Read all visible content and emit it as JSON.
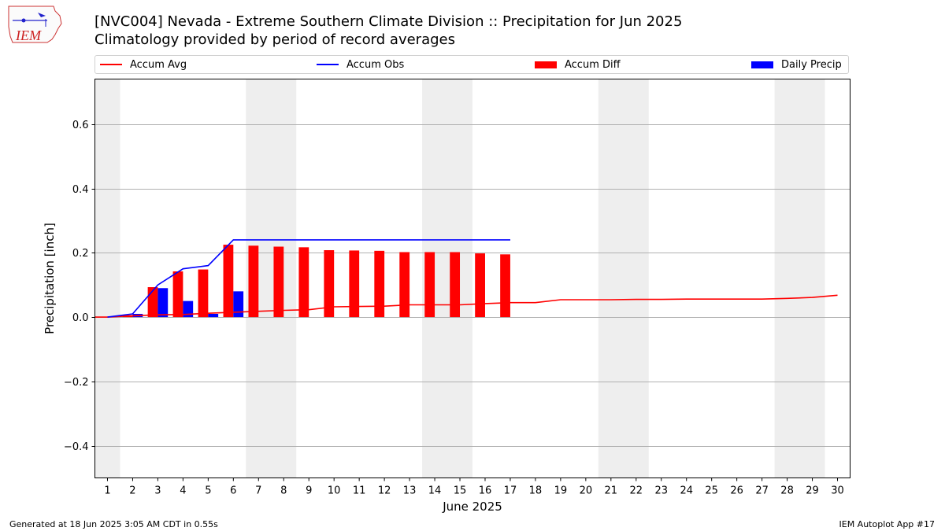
{
  "header": {
    "title": "[NVC004] Nevada - Extreme Southern Climate Division :: Precipitation for Jun 2025",
    "subtitle": "Climatology provided by period of record averages"
  },
  "logo": {
    "text": "IEM",
    "icon": "iem-iowa-logo-icon"
  },
  "legend": {
    "items": [
      {
        "label": "Accum Avg",
        "kind": "line",
        "color": "#ff0000"
      },
      {
        "label": "Accum Obs",
        "kind": "line",
        "color": "#0000ff"
      },
      {
        "label": "Accum Diff",
        "kind": "bar",
        "color": "#ff0000"
      },
      {
        "label": "Daily Precip",
        "kind": "bar",
        "color": "#0000ff"
      }
    ]
  },
  "footer": {
    "generated": "Generated at 18 Jun 2025 3:05 AM CDT in 0.55s",
    "app": "IEM Autoplot App #17"
  },
  "chart_data": {
    "type": "bar",
    "xlabel": "June 2025",
    "ylabel": "Precipitation [inch]",
    "xlim": [
      0.5,
      30.5
    ],
    "ylim": [
      -0.5,
      0.74
    ],
    "yticks": [
      -0.4,
      -0.2,
      0.0,
      0.2,
      0.4,
      0.6
    ],
    "ytick_labels": [
      "−0.4",
      "−0.2",
      "0.0",
      "0.2",
      "0.4",
      "0.6"
    ],
    "categories": [
      "1",
      "2",
      "3",
      "4",
      "5",
      "6",
      "7",
      "8",
      "9",
      "10",
      "11",
      "12",
      "13",
      "14",
      "15",
      "16",
      "17",
      "18",
      "19",
      "20",
      "21",
      "22",
      "23",
      "24",
      "25",
      "26",
      "27",
      "28",
      "29",
      "30"
    ],
    "grid": "horizontal",
    "weekend_shading": [
      [
        0.5,
        1.5
      ],
      [
        6.5,
        8.5
      ],
      [
        13.5,
        15.5
      ],
      [
        20.5,
        22.5
      ],
      [
        27.5,
        29.5
      ]
    ],
    "weekend_color": "#eeeeee",
    "series": [
      {
        "name": "Accum Avg",
        "kind": "line",
        "color": "#ff0000",
        "x": [
          0.5,
          1,
          2,
          3,
          4,
          5,
          6,
          7,
          8,
          9,
          10,
          11,
          12,
          13,
          14,
          15,
          16,
          17,
          18,
          19,
          20,
          21,
          22,
          23,
          24,
          25,
          26,
          27,
          28,
          29,
          30
        ],
        "values": [
          0.0,
          0.0,
          0.004,
          0.007,
          0.008,
          0.012,
          0.015,
          0.018,
          0.021,
          0.023,
          0.032,
          0.033,
          0.034,
          0.038,
          0.038,
          0.038,
          0.042,
          0.045,
          0.045,
          0.054,
          0.054,
          0.054,
          0.055,
          0.055,
          0.056,
          0.056,
          0.056,
          0.056,
          0.058,
          0.061,
          0.068
        ]
      },
      {
        "name": "Accum Obs",
        "kind": "line",
        "color": "#0000ff",
        "x": [
          1,
          2,
          3,
          4,
          5,
          6,
          7,
          8,
          9,
          10,
          11,
          12,
          13,
          14,
          15,
          16,
          17
        ],
        "values": [
          0.0,
          0.01,
          0.1,
          0.15,
          0.16,
          0.24,
          0.24,
          0.24,
          0.24,
          0.24,
          0.24,
          0.24,
          0.24,
          0.24,
          0.24,
          0.24,
          0.24
        ]
      },
      {
        "name": "Accum Diff",
        "kind": "bar",
        "color": "#ff0000",
        "x": [
          1,
          2,
          3,
          4,
          5,
          6,
          7,
          8,
          9,
          10,
          11,
          12,
          13,
          14,
          15,
          16,
          17
        ],
        "values": [
          0.0,
          0.006,
          0.093,
          0.142,
          0.148,
          0.225,
          0.222,
          0.219,
          0.217,
          0.208,
          0.207,
          0.206,
          0.202,
          0.202,
          0.202,
          0.198,
          0.195
        ]
      },
      {
        "name": "Daily Precip",
        "kind": "bar",
        "color": "#0000ff",
        "x": [
          1,
          2,
          3,
          4,
          5,
          6,
          7,
          8,
          9,
          10,
          11,
          12,
          13,
          14,
          15,
          16,
          17
        ],
        "values": [
          0.0,
          0.01,
          0.09,
          0.05,
          0.01,
          0.08,
          0.0,
          0.0,
          0.0,
          0.0,
          0.0,
          0.0,
          0.0,
          0.0,
          0.0,
          0.0,
          0.0
        ]
      }
    ]
  }
}
